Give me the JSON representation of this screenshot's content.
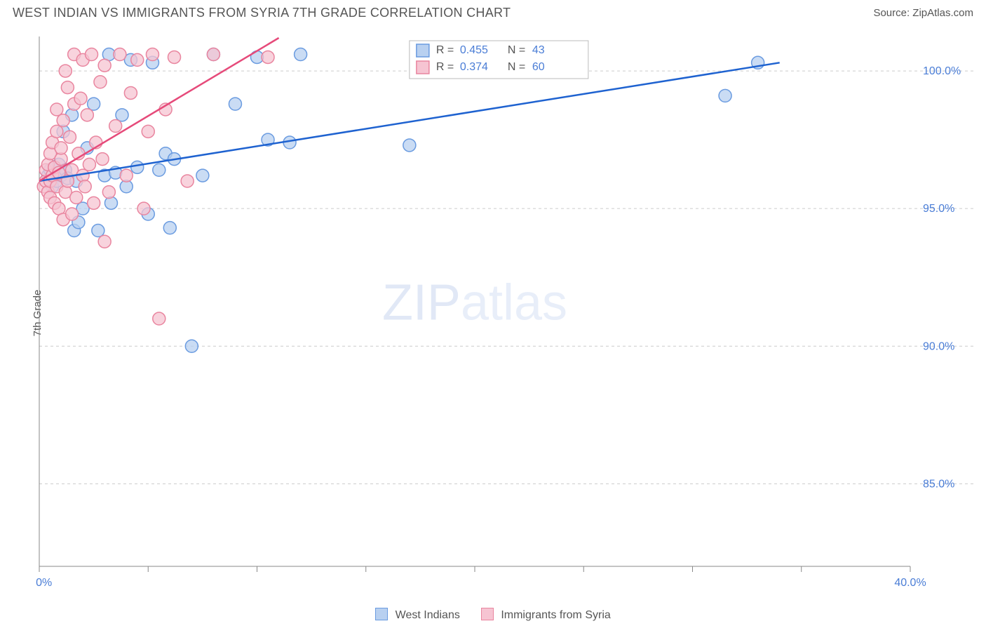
{
  "title": "WEST INDIAN VS IMMIGRANTS FROM SYRIA 7TH GRADE CORRELATION CHART",
  "source": "Source: ZipAtlas.com",
  "ylabel": "7th Grade",
  "watermark_bold": "ZIP",
  "watermark_thin": "atlas",
  "chart": {
    "type": "scatter",
    "xlim": [
      0,
      40
    ],
    "ylim": [
      82,
      101.2
    ],
    "xtick_labels": {
      "0": "0.0%",
      "40": "40.0%"
    },
    "xticks": [
      0,
      5,
      10,
      15,
      20,
      25,
      30,
      35,
      40
    ],
    "yticks": [
      85,
      90,
      95,
      100
    ],
    "ytick_format": "%",
    "grid_color": "#cccccc",
    "axis_color": "#888888",
    "background_color": "#ffffff",
    "series": [
      {
        "name": "West Indians",
        "marker_fill": "#b8d0f0",
        "marker_stroke": "#6a9be0",
        "marker_radius": 9,
        "line_color": "#1e62d0",
        "line_width": 2.5,
        "r_value": "0.455",
        "n_value": "43",
        "trend": {
          "x1": 0,
          "y1": 96.0,
          "x2": 34,
          "y2": 100.3
        },
        "points": [
          [
            0.4,
            96.2
          ],
          [
            0.5,
            96.4
          ],
          [
            0.6,
            95.8
          ],
          [
            0.7,
            96.5
          ],
          [
            0.8,
            96.0
          ],
          [
            0.9,
            96.6
          ],
          [
            1.0,
            96.2
          ],
          [
            1.1,
            97.8
          ],
          [
            1.2,
            96.4
          ],
          [
            1.3,
            96.1
          ],
          [
            1.5,
            98.4
          ],
          [
            1.6,
            94.2
          ],
          [
            1.7,
            96.0
          ],
          [
            1.8,
            94.5
          ],
          [
            2.0,
            95.0
          ],
          [
            2.2,
            97.2
          ],
          [
            2.5,
            98.8
          ],
          [
            2.7,
            94.2
          ],
          [
            3.0,
            96.2
          ],
          [
            3.2,
            100.6
          ],
          [
            3.3,
            95.2
          ],
          [
            3.5,
            96.3
          ],
          [
            3.8,
            98.4
          ],
          [
            4.0,
            95.8
          ],
          [
            4.2,
            100.4
          ],
          [
            4.5,
            96.5
          ],
          [
            5.0,
            94.8
          ],
          [
            5.2,
            100.3
          ],
          [
            5.5,
            96.4
          ],
          [
            5.8,
            97.0
          ],
          [
            6.0,
            94.3
          ],
          [
            6.2,
            96.8
          ],
          [
            7.0,
            90.0
          ],
          [
            7.5,
            96.2
          ],
          [
            8.0,
            100.6
          ],
          [
            9.0,
            98.8
          ],
          [
            10.0,
            100.5
          ],
          [
            10.5,
            97.5
          ],
          [
            11.5,
            97.4
          ],
          [
            12.0,
            100.6
          ],
          [
            17.0,
            97.3
          ],
          [
            31.5,
            99.1
          ],
          [
            33.0,
            100.3
          ]
        ]
      },
      {
        "name": "Immigrants from Syria",
        "marker_fill": "#f6c4d2",
        "marker_stroke": "#e9859f",
        "marker_radius": 9,
        "line_color": "#e64a7a",
        "line_width": 2.5,
        "r_value": "0.374",
        "n_value": "60",
        "trend": {
          "x1": 0,
          "y1": 96.0,
          "x2": 11,
          "y2": 101.2
        },
        "points": [
          [
            0.2,
            95.8
          ],
          [
            0.3,
            96.0
          ],
          [
            0.3,
            96.4
          ],
          [
            0.4,
            95.6
          ],
          [
            0.4,
            96.6
          ],
          [
            0.5,
            96.0
          ],
          [
            0.5,
            97.0
          ],
          [
            0.5,
            95.4
          ],
          [
            0.6,
            96.2
          ],
          [
            0.6,
            97.4
          ],
          [
            0.7,
            95.2
          ],
          [
            0.7,
            96.5
          ],
          [
            0.8,
            95.8
          ],
          [
            0.8,
            97.8
          ],
          [
            0.8,
            98.6
          ],
          [
            0.9,
            95.0
          ],
          [
            0.9,
            96.3
          ],
          [
            1.0,
            96.8
          ],
          [
            1.0,
            97.2
          ],
          [
            1.1,
            94.6
          ],
          [
            1.1,
            98.2
          ],
          [
            1.2,
            95.6
          ],
          [
            1.2,
            100.0
          ],
          [
            1.3,
            96.0
          ],
          [
            1.3,
            99.4
          ],
          [
            1.4,
            97.6
          ],
          [
            1.5,
            94.8
          ],
          [
            1.5,
            96.4
          ],
          [
            1.6,
            98.8
          ],
          [
            1.6,
            100.6
          ],
          [
            1.7,
            95.4
          ],
          [
            1.8,
            97.0
          ],
          [
            1.9,
            99.0
          ],
          [
            2.0,
            96.2
          ],
          [
            2.0,
            100.4
          ],
          [
            2.1,
            95.8
          ],
          [
            2.2,
            98.4
          ],
          [
            2.3,
            96.6
          ],
          [
            2.4,
            100.6
          ],
          [
            2.5,
            95.2
          ],
          [
            2.6,
            97.4
          ],
          [
            2.8,
            99.6
          ],
          [
            2.9,
            96.8
          ],
          [
            3.0,
            93.8
          ],
          [
            3.0,
            100.2
          ],
          [
            3.2,
            95.6
          ],
          [
            3.5,
            98.0
          ],
          [
            3.7,
            100.6
          ],
          [
            4.0,
            96.2
          ],
          [
            4.2,
            99.2
          ],
          [
            4.5,
            100.4
          ],
          [
            4.8,
            95.0
          ],
          [
            5.0,
            97.8
          ],
          [
            5.2,
            100.6
          ],
          [
            5.5,
            91.0
          ],
          [
            5.8,
            98.6
          ],
          [
            6.2,
            100.5
          ],
          [
            6.8,
            96.0
          ],
          [
            8.0,
            100.6
          ],
          [
            10.5,
            100.5
          ]
        ]
      }
    ],
    "stats_legend": {
      "r_label": "R =",
      "n_label": "N ="
    },
    "footer_legend": [
      {
        "swatch_fill": "#b8d0f0",
        "swatch_stroke": "#6a9be0",
        "label": "West Indians"
      },
      {
        "swatch_fill": "#f6c4d2",
        "swatch_stroke": "#e9859f",
        "label": "Immigrants from Syria"
      }
    ]
  }
}
